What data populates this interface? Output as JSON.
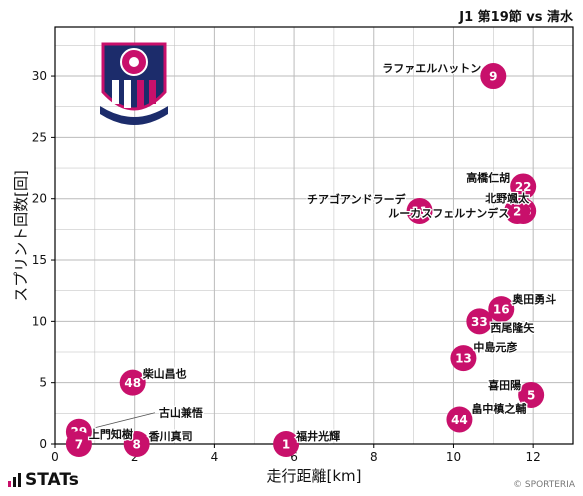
{
  "header": {
    "title": "J1 第19節 vs 清水"
  },
  "footer": {
    "brand": "STATs",
    "credit": "© SPORTERIA"
  },
  "colors": {
    "marker": "#c8106b",
    "marker_text": "#ffffff",
    "grid": "#bbbbbb",
    "axis": "#000000"
  },
  "chart_data": {
    "type": "scatter",
    "title": "J1 第19節 vs 清水",
    "xlabel": "走行距離[km]",
    "ylabel": "スプリント回数[回]",
    "xlim": [
      0,
      13
    ],
    "ylim": [
      0,
      34
    ],
    "xticks": [
      0,
      2,
      4,
      6,
      8,
      10,
      12
    ],
    "yticks": [
      0,
      5,
      10,
      15,
      20,
      25,
      30
    ],
    "grid": true,
    "points": [
      {
        "number": "9",
        "name": "ラファエルハットン",
        "x": 11.0,
        "y": 30
      },
      {
        "number": "22",
        "name": "高橋仁胡",
        "x": 11.75,
        "y": 21
      },
      {
        "number": "11",
        "name": "チアゴアンドラーデ",
        "x": 9.15,
        "y": 19
      },
      {
        "number": "38",
        "name": "北野颯太",
        "x": 11.75,
        "y": 19
      },
      {
        "number": "2",
        "name": "ルーカスフェルナンデス",
        "x": 11.6,
        "y": 19
      },
      {
        "number": "16",
        "name": "奥田勇斗",
        "x": 11.2,
        "y": 11
      },
      {
        "number": "33",
        "name": "西尾隆矢",
        "x": 10.65,
        "y": 10
      },
      {
        "number": "13",
        "name": "中島元彦",
        "x": 10.25,
        "y": 7
      },
      {
        "number": "48",
        "name": "柴山昌也",
        "x": 1.95,
        "y": 5
      },
      {
        "number": "5",
        "name": "喜田陽",
        "x": 11.95,
        "y": 4
      },
      {
        "number": "44",
        "name": "畠中槙之輔",
        "x": 10.15,
        "y": 2
      },
      {
        "number": "29",
        "name": "古山兼悟",
        "x": 0.6,
        "y": 1
      },
      {
        "number": "7",
        "name": "上門知樹",
        "x": 0.6,
        "y": 0
      },
      {
        "number": "8",
        "name": "香川真司",
        "x": 2.05,
        "y": 0
      },
      {
        "number": "1",
        "name": "福井光輝",
        "x": 5.8,
        "y": 0
      }
    ]
  }
}
